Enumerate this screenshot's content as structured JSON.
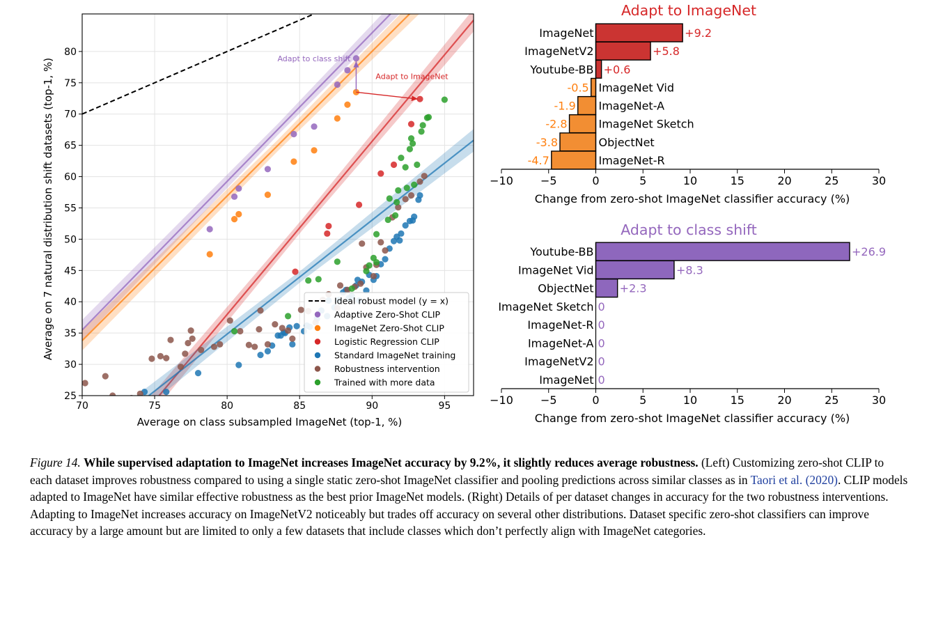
{
  "colors": {
    "adaptive": "#9467bd",
    "imagenet_zs": "#ff7f0e",
    "logistic": "#d62728",
    "standard": "#1f77b4",
    "robust": "#8c564b",
    "moredata": "#2ca02c",
    "bar_red": "#cb3432",
    "bar_orange": "#f28e33",
    "bar_purple": "#8e67bd",
    "adapt_imagenet_title": "#d62728",
    "adapt_class_title": "#9467bd"
  },
  "chart_data": [
    {
      "type": "scatter",
      "xlabel": "Average on class subsampled ImageNet (top-1, %)",
      "ylabel": "Average on 7 natural distribution shift datasets (top-1, %)",
      "xlim": [
        70,
        97
      ],
      "ylim": [
        25,
        86
      ],
      "xticks": [
        70,
        75,
        80,
        85,
        90,
        95
      ],
      "yticks": [
        25,
        30,
        35,
        40,
        45,
        50,
        55,
        60,
        65,
        70,
        75,
        80
      ],
      "grid": true,
      "legend_position": "lower-right",
      "legend": [
        {
          "label": "Ideal robust model (y = x)",
          "key": "ideal",
          "marker": "dashed-line"
        },
        {
          "label": "Adaptive Zero-Shot CLIP",
          "key": "adaptive",
          "marker": "dot"
        },
        {
          "label": "ImageNet Zero-Shot CLIP",
          "key": "imagenet_zs",
          "marker": "dot"
        },
        {
          "label": "Logistic Regression CLIP",
          "key": "logistic",
          "marker": "dot"
        },
        {
          "label": "Standard ImageNet training",
          "key": "standard",
          "marker": "dot"
        },
        {
          "label": "Robustness intervention",
          "key": "robust",
          "marker": "dot"
        },
        {
          "label": "Trained with more data",
          "key": "moredata",
          "marker": "dot"
        }
      ],
      "annotations": [
        {
          "text": "Adapt to class shift",
          "from": [
            88.9,
            73.5
          ],
          "to": [
            88.9,
            78.9
          ],
          "key": "adaptive"
        },
        {
          "text": "Adapt to ImageNet",
          "from": [
            88.9,
            73.5
          ],
          "to": [
            93.3,
            72.4
          ],
          "key": "logistic"
        }
      ],
      "fit_lines": [
        {
          "key": "adaptive",
          "x": [
            70,
            97
          ],
          "y": [
            35.5,
            99.6
          ]
        },
        {
          "key": "imagenet_zs",
          "x": [
            70,
            97
          ],
          "y": [
            33.8,
            96.2
          ]
        },
        {
          "key": "logistic",
          "x": [
            73.5,
            97
          ],
          "y": [
            20.0,
            85.0
          ]
        },
        {
          "key": "standard",
          "x": [
            73.5,
            97
          ],
          "y": [
            23.0,
            65.8
          ]
        }
      ],
      "series": [
        {
          "name": "Adaptive Zero-Shot CLIP",
          "key": "adaptive",
          "points": [
            [
              78.8,
              51.6
            ],
            [
              80.5,
              56.8
            ],
            [
              80.8,
              58.1
            ],
            [
              82.8,
              61.2
            ],
            [
              84.6,
              66.8
            ],
            [
              86.0,
              68.0
            ],
            [
              87.6,
              74.7
            ],
            [
              88.3,
              77.0
            ],
            [
              88.9,
              78.9
            ]
          ]
        },
        {
          "name": "ImageNet Zero-Shot CLIP",
          "key": "imagenet_zs",
          "points": [
            [
              78.8,
              47.6
            ],
            [
              80.5,
              53.2
            ],
            [
              80.8,
              54.0
            ],
            [
              82.8,
              57.1
            ],
            [
              84.6,
              62.4
            ],
            [
              86.0,
              64.2
            ],
            [
              87.6,
              69.3
            ],
            [
              88.3,
              71.5
            ],
            [
              88.9,
              73.5
            ]
          ]
        },
        {
          "name": "Logistic Regression CLIP",
          "key": "logistic",
          "points": [
            [
              84.7,
              44.8
            ],
            [
              86.9,
              50.9
            ],
            [
              87.0,
              52.1
            ],
            [
              89.1,
              55.5
            ],
            [
              90.6,
              60.5
            ],
            [
              91.5,
              61.9
            ],
            [
              93.3,
              72.4
            ],
            [
              92.7,
              68.4
            ]
          ]
        },
        {
          "name": "Standard ImageNet training",
          "key": "standard",
          "points": [
            [
              74.3,
              25.6
            ],
            [
              75.8,
              25.6
            ],
            [
              78.0,
              28.6
            ],
            [
              80.8,
              29.9
            ],
            [
              82.3,
              31.5
            ],
            [
              82.8,
              32.1
            ],
            [
              83.1,
              33.0
            ],
            [
              83.5,
              34.6
            ],
            [
              83.9,
              35.1
            ],
            [
              84.3,
              35.9
            ],
            [
              84.5,
              33.2
            ],
            [
              84.8,
              36.1
            ],
            [
              85.3,
              35.3
            ],
            [
              85.7,
              36.0
            ],
            [
              86.2,
              37.3
            ],
            [
              86.5,
              38.6
            ],
            [
              86.9,
              37.7
            ],
            [
              87.0,
              40.2
            ],
            [
              87.4,
              39.1
            ],
            [
              87.7,
              40.3
            ],
            [
              88.0,
              41.5
            ],
            [
              88.2,
              41.9
            ],
            [
              88.4,
              40.6
            ],
            [
              88.6,
              40.9
            ],
            [
              88.9,
              42.6
            ],
            [
              89.1,
              40.2
            ],
            [
              89.3,
              43.2
            ],
            [
              89.6,
              41.8
            ],
            [
              89.8,
              44.3
            ],
            [
              90.1,
              43.5
            ],
            [
              90.3,
              44.1
            ],
            [
              90.6,
              46.0
            ],
            [
              90.9,
              46.8
            ],
            [
              91.2,
              48.5
            ],
            [
              91.5,
              49.7
            ],
            [
              91.7,
              50.4
            ],
            [
              92.0,
              50.9
            ],
            [
              92.3,
              52.2
            ],
            [
              92.6,
              52.9
            ],
            [
              92.9,
              53.6
            ],
            [
              93.2,
              56.3
            ],
            [
              93.3,
              57.0
            ],
            [
              92.8,
              53.0
            ],
            [
              91.9,
              49.8
            ],
            [
              89.0,
              43.5
            ],
            [
              85.5,
              36.2
            ],
            [
              83.7,
              34.6
            ],
            [
              84.0,
              35.0
            ]
          ]
        },
        {
          "name": "Robustness intervention",
          "key": "robust",
          "points": [
            [
              70.2,
              27.0
            ],
            [
              71.6,
              28.1
            ],
            [
              72.1,
              25.0
            ],
            [
              73.4,
              24.6
            ],
            [
              74.0,
              25.3
            ],
            [
              74.8,
              30.9
            ],
            [
              75.4,
              31.3
            ],
            [
              75.8,
              31.0
            ],
            [
              76.1,
              33.9
            ],
            [
              76.8,
              29.6
            ],
            [
              77.1,
              31.7
            ],
            [
              77.3,
              33.4
            ],
            [
              77.5,
              35.4
            ],
            [
              77.6,
              34.1
            ],
            [
              78.2,
              32.3
            ],
            [
              79.1,
              32.8
            ],
            [
              79.5,
              33.2
            ],
            [
              80.2,
              37.0
            ],
            [
              80.9,
              35.3
            ],
            [
              81.5,
              33.1
            ],
            [
              81.9,
              32.8
            ],
            [
              82.2,
              35.6
            ],
            [
              82.3,
              38.6
            ],
            [
              82.8,
              33.2
            ],
            [
              83.3,
              36.4
            ],
            [
              83.8,
              35.8
            ],
            [
              84.2,
              35.4
            ],
            [
              84.5,
              34.1
            ],
            [
              85.1,
              38.7
            ],
            [
              85.6,
              38.5
            ],
            [
              86.1,
              36.7
            ],
            [
              86.6,
              40.3
            ],
            [
              87.0,
              41.2
            ],
            [
              87.6,
              39.0
            ],
            [
              87.8,
              42.6
            ],
            [
              88.3,
              41.9
            ],
            [
              88.8,
              42.4
            ],
            [
              89.2,
              42.9
            ],
            [
              89.6,
              45.5
            ],
            [
              90.1,
              44.1
            ],
            [
              90.3,
              45.9
            ],
            [
              90.6,
              49.5
            ],
            [
              90.9,
              48.2
            ],
            [
              91.4,
              53.5
            ],
            [
              91.8,
              55.1
            ],
            [
              92.3,
              56.4
            ],
            [
              92.7,
              57.0
            ],
            [
              93.3,
              59.2
            ],
            [
              93.6,
              60.1
            ],
            [
              89.3,
              49.3
            ]
          ]
        },
        {
          "name": "Trained with more data",
          "key": "moredata",
          "points": [
            [
              80.5,
              35.3
            ],
            [
              84.2,
              37.7
            ],
            [
              85.6,
              43.4
            ],
            [
              86.3,
              43.6
            ],
            [
              87.6,
              46.4
            ],
            [
              88.6,
              42.1
            ],
            [
              89.6,
              44.9
            ],
            [
              90.1,
              47.0
            ],
            [
              90.3,
              46.3
            ],
            [
              91.1,
              53.1
            ],
            [
              91.2,
              56.5
            ],
            [
              91.6,
              53.8
            ],
            [
              91.7,
              55.9
            ],
            [
              91.8,
              57.8
            ],
            [
              92.0,
              63.0
            ],
            [
              92.3,
              61.5
            ],
            [
              92.4,
              58.2
            ],
            [
              92.6,
              64.4
            ],
            [
              92.7,
              66.1
            ],
            [
              92.8,
              65.3
            ],
            [
              93.1,
              61.9
            ],
            [
              93.4,
              67.2
            ],
            [
              93.5,
              68.2
            ],
            [
              93.8,
              69.4
            ],
            [
              93.9,
              69.5
            ],
            [
              95.0,
              72.3
            ],
            [
              92.9,
              58.7
            ],
            [
              90.3,
              50.8
            ],
            [
              89.8,
              45.8
            ]
          ]
        },
        {
          "name": "Ideal robust model (y = x)",
          "key": "ideal",
          "points": [
            [
              70,
              70
            ],
            [
              86,
              86
            ]
          ]
        }
      ]
    },
    {
      "type": "bar",
      "orientation": "horizontal",
      "title": "Adapt to ImageNet",
      "xlabel": "Change from zero-shot ImageNet classifier accuracy (%)",
      "xlim": [
        -10,
        30
      ],
      "xticks": [
        -10,
        -5,
        0,
        5,
        10,
        15,
        20,
        25,
        30
      ],
      "categories": [
        "ImageNet",
        "ImageNetV2",
        "Youtube-BB",
        "ImageNet Vid",
        "ImageNet-A",
        "ImageNet Sketch",
        "ObjectNet",
        "ImageNet-R"
      ],
      "values": [
        9.2,
        5.8,
        0.6,
        -0.5,
        -1.9,
        -2.8,
        -3.8,
        -4.7
      ],
      "value_labels": [
        "+9.2",
        "+5.8",
        "+0.6",
        "-0.5",
        "-1.9",
        "-2.8",
        "-3.8",
        "-4.7"
      ]
    },
    {
      "type": "bar",
      "orientation": "horizontal",
      "title": "Adapt to class shift",
      "xlabel": "Change from zero-shot ImageNet classifier accuracy (%)",
      "xlim": [
        -10,
        30
      ],
      "xticks": [
        -10,
        -5,
        0,
        5,
        10,
        15,
        20,
        25,
        30
      ],
      "categories": [
        "Youtube-BB",
        "ImageNet Vid",
        "ObjectNet",
        "ImageNet Sketch",
        "ImageNet-R",
        "ImageNet-A",
        "ImageNetV2",
        "ImageNet"
      ],
      "values": [
        26.9,
        8.3,
        2.3,
        0,
        0,
        0,
        0,
        0
      ],
      "value_labels": [
        "+26.9",
        "+8.3",
        "+2.3",
        "0",
        "0",
        "0",
        "0",
        "0"
      ]
    }
  ],
  "caption": {
    "label": "Figure 14.",
    "bold": "While supervised adaptation to ImageNet increases ImageNet accuracy by 9.2%, it slightly reduces average robustness.",
    "text1": "(Left) Customizing zero-shot CLIP to each dataset improves robustness compared to using a single static zero-shot ImageNet classifier and pooling predictions across similar classes as in",
    "cite": "Taori et al. (2020)",
    "text2": ". CLIP models adapted to ImageNet have similar effective robustness as the best prior ImageNet models. (Right) Details of per dataset changes in accuracy for the two robustness interventions. Adapting to ImageNet increases accuracy on ImageNetV2 noticeably but trades off accuracy on several other distributions. Dataset specific zero-shot classifiers can improve accuracy by a large amount but are limited to only a few datasets that include classes which don’t perfectly align with ImageNet categories."
  }
}
